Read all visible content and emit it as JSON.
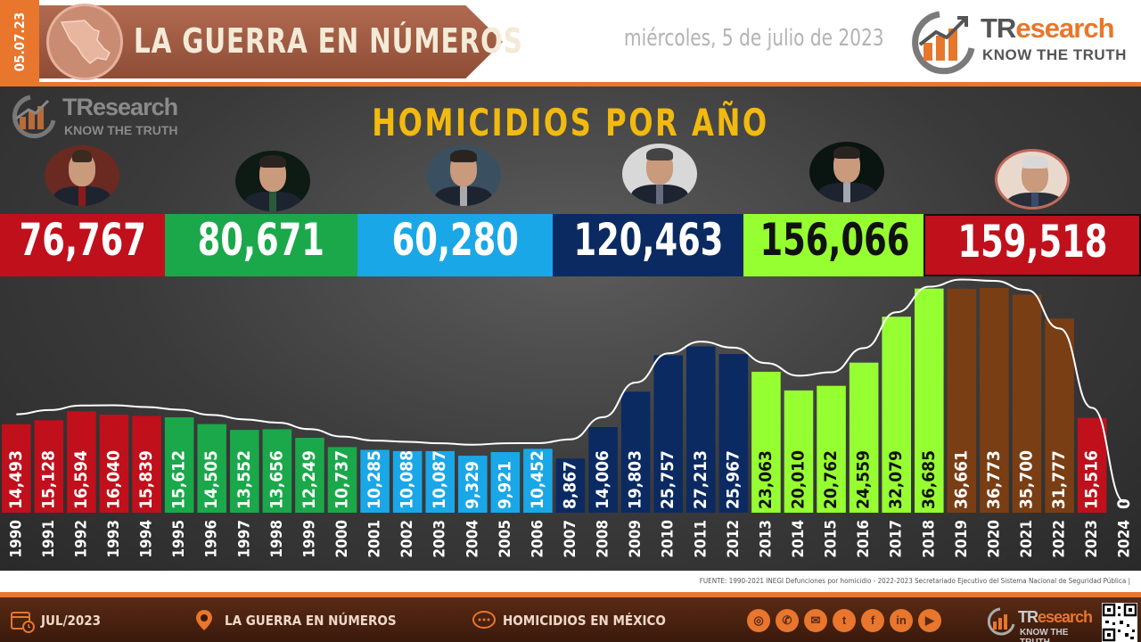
{
  "header": {
    "date_tab": "05.07.23",
    "banner_title": "LA GUERRA EN NÚMEROS",
    "date_text": "miércoles, 5 de julio de 2023",
    "logo_name_a": "TR",
    "logo_name_b": "esearch",
    "logo_tag": "KNOW THE TRUTH"
  },
  "colors": {
    "red": "#c0101c",
    "green": "#1aa84a",
    "cyan": "#1aa7e8",
    "navy": "#0b2a62",
    "lime": "#96ff32",
    "brown": "#7a3e14",
    "orange": "#e8762c",
    "title_gold": "#f2b90f"
  },
  "terms": [
    {
      "total": "76,767",
      "color": "#c0101c",
      "text_color": "#ffffff"
    },
    {
      "total": "80,671",
      "color": "#1aa84a",
      "text_color": "#ffffff"
    },
    {
      "total": "60,280",
      "color": "#1aa7e8",
      "text_color": "#ffffff"
    },
    {
      "total": "120,463",
      "color": "#0b2a62",
      "text_color": "#ffffff"
    },
    {
      "total": "156,066",
      "color": "#96ff32",
      "text_color": "#111111"
    },
    {
      "total": "159,518",
      "color": "#c0101c",
      "text_color": "#ffffff"
    }
  ],
  "chart_data": {
    "type": "bar",
    "title": "HOMICIDIOS POR AÑO",
    "xlabel": "",
    "ylabel": "",
    "grid": false,
    "legend": "none",
    "categories": [
      "1990",
      "1991",
      "1992",
      "1993",
      "1994",
      "1995",
      "1996",
      "1997",
      "1998",
      "1999",
      "2000",
      "2001",
      "2002",
      "2003",
      "2004",
      "2005",
      "2006",
      "2007",
      "2008",
      "2009",
      "2010",
      "2011",
      "2012",
      "2013",
      "2014",
      "2015",
      "2016",
      "2017",
      "2018",
      "2019",
      "2020",
      "2021",
      "2022",
      "2023",
      "2024"
    ],
    "values": [
      14493,
      15128,
      16594,
      16040,
      15839,
      15612,
      14505,
      13552,
      13656,
      12249,
      10737,
      10285,
      10088,
      10087,
      9329,
      9921,
      10452,
      8867,
      14006,
      19803,
      25757,
      27213,
      25967,
      23063,
      20010,
      20762,
      24559,
      32079,
      36685,
      36661,
      36773,
      35700,
      31777,
      15516,
      0
    ],
    "labels": [
      "14,493",
      "15,128",
      "16,594",
      "16,040",
      "15,839",
      "15,612",
      "14,505",
      "13,552",
      "13,656",
      "12,249",
      "10,737",
      "10,285",
      "10,088",
      "10,087",
      "9,329",
      "9,921",
      "10,452",
      "8,867",
      "14,006",
      "19,803",
      "25,757",
      "27,213",
      "25,967",
      "23,063",
      "20,010",
      "20,762",
      "24,559",
      "32,079",
      "36,685",
      "36,661",
      "36,773",
      "35,700",
      "31,777",
      "15,516",
      "0"
    ],
    "bar_colors": [
      "red",
      "red",
      "red",
      "red",
      "red",
      "green",
      "green",
      "green",
      "green",
      "green",
      "green",
      "cyan",
      "cyan",
      "cyan",
      "cyan",
      "cyan",
      "cyan",
      "navy",
      "navy",
      "navy",
      "navy",
      "navy",
      "navy",
      "lime",
      "lime",
      "lime",
      "lime",
      "lime",
      "lime",
      "brown",
      "brown",
      "brown",
      "brown",
      "red",
      "red"
    ],
    "trend_line": true
  },
  "footer": {
    "source": "FUENTE: 1990-2021 INEGI Defunciones por homicidio - 2022-2023 Secretariado Ejecutivo del Sistema Nacional de Seguridad Pública |",
    "date": "JUL/2023",
    "section": "LA GUERRA EN NÚMEROS",
    "topic": "HOMICIDIOS EN MÉXICO",
    "logo_name_a": "TR",
    "logo_name_b": "esearch",
    "logo_tag": "KNOW THE TRUTH",
    "social_icons": [
      "globe-icon",
      "phone-icon",
      "mail-icon",
      "twitter-icon",
      "facebook-icon",
      "linkedin-icon",
      "youtube-icon"
    ]
  }
}
